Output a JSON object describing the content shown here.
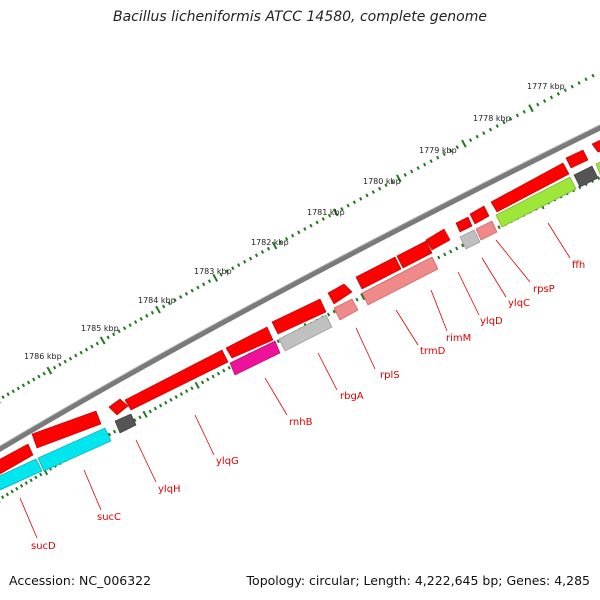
{
  "title": "Bacillus licheniformis ATCC 14580, complete genome",
  "footer": {
    "accession_label": "Accession:",
    "accession": "NC_006322",
    "topology_label": "Topology:",
    "topology": "circular",
    "length_label": "Length:",
    "length": "4,222,645 bp",
    "genes_label": "Genes:",
    "genes": "4,285"
  },
  "scale_labels": [
    "1777 kbp",
    "1778 kbp",
    "1779 kbp",
    "1780 kbp",
    "1781 kbp",
    "1782 kbp",
    "1783 kbp",
    "1784 kbp",
    "1785 kbp",
    "1786 kbp"
  ],
  "genes": [
    {
      "name": "ffh",
      "color": "#9ee63a"
    },
    {
      "name": "rpsP",
      "color": "#f08a8a"
    },
    {
      "name": "ylqC",
      "color": "#c0c0c0"
    },
    {
      "name": "ylqD",
      "color": "#ff0000"
    },
    {
      "name": "rimM",
      "color": "#ff0000"
    },
    {
      "name": "trmD",
      "color": "#f08a8a"
    },
    {
      "name": "rplS",
      "color": "#f08a8a"
    },
    {
      "name": "rbgA",
      "color": "#c0c0c0"
    },
    {
      "name": "rnhB",
      "color": "#ee1199"
    },
    {
      "name": "ylqG",
      "color": "#ff0000"
    },
    {
      "name": "ylqH",
      "color": "#555555"
    },
    {
      "name": "sucC",
      "color": "#00e5ee"
    },
    {
      "name": "sucD",
      "color": "#00e5ee"
    }
  ],
  "colors": {
    "backbone": "#7a7a7a",
    "scale_ticks": "#1e7b1e",
    "forward_genes": "#ff0000",
    "label_text": "#e00000"
  }
}
